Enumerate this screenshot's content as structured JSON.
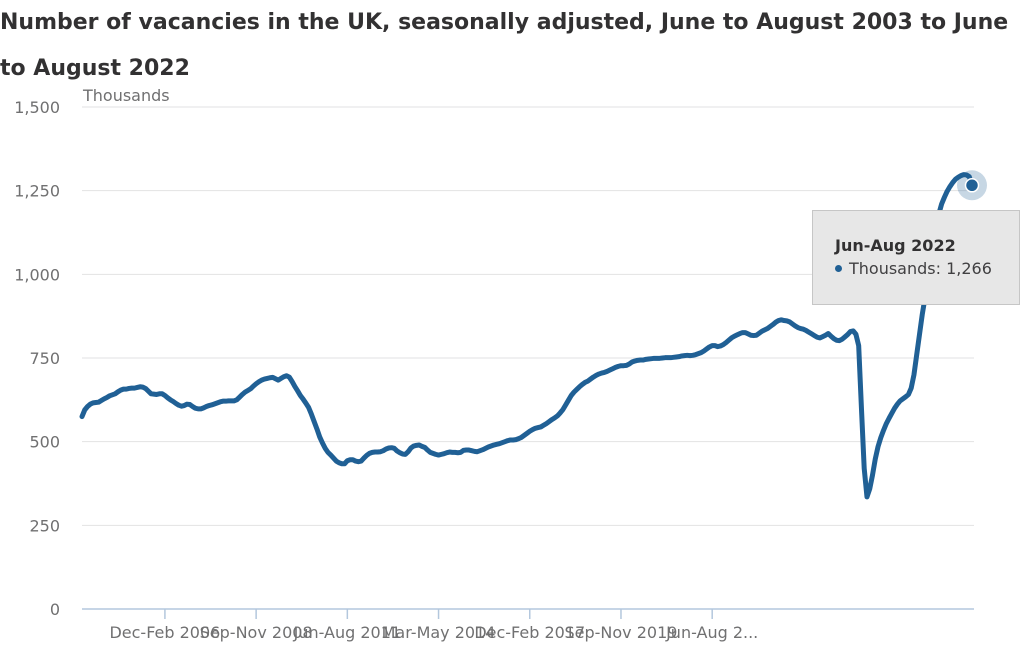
{
  "chart_data": {
    "type": "line",
    "title": "Number of vacancies in the UK, seasonally adjusted, June to August 2003 to June to August 2022",
    "ylabel": "Thousands",
    "xlabel": "",
    "ylim": [
      0,
      1500
    ],
    "yticks": [
      0,
      250,
      500,
      750,
      1000,
      1250,
      1500
    ],
    "ytick_labels": [
      "0",
      "250",
      "500",
      "750",
      "1,000",
      "1,250",
      "1,500"
    ],
    "xtick_labels": [
      "Dec-Feb 2006",
      "Sep-Nov 2008",
      "Jun-Aug 2011",
      "Mar-May 2014",
      "Dec-Feb 2017",
      "Sep-Nov 2019",
      "Jun-Aug 2..."
    ],
    "xtick_indices": [
      30,
      63,
      96,
      129,
      162,
      195,
      228
    ],
    "grid": "horizontal",
    "color": "#206095",
    "series": [
      {
        "name": "Thousands",
        "start": "Jun-Aug 2003",
        "end": "Jun-Aug 2022",
        "values": [
          575,
          595,
          605,
          612,
          616,
          617,
          618,
          623,
          628,
          632,
          637,
          640,
          643,
          649,
          654,
          657,
          657,
          659,
          660,
          660,
          662,
          664,
          663,
          659,
          651,
          643,
          642,
          641,
          643,
          643,
          638,
          631,
          625,
          620,
          614,
          609,
          606,
          608,
          612,
          611,
          605,
          600,
          598,
          598,
          601,
          605,
          608,
          610,
          613,
          616,
          619,
          621,
          621,
          622,
          622,
          622,
          625,
          633,
          641,
          648,
          653,
          658,
          666,
          673,
          679,
          684,
          687,
          689,
          691,
          692,
          688,
          684,
          689,
          694,
          697,
          693,
          680,
          665,
          652,
          638,
          627,
          615,
          602,
          582,
          560,
          538,
          514,
          496,
          480,
          468,
          460,
          451,
          442,
          437,
          434,
          434,
          443,
          446,
          446,
          442,
          440,
          442,
          451,
          459,
          465,
          468,
          469,
          469,
          470,
          473,
          478,
          481,
          482,
          480,
          472,
          467,
          463,
          462,
          470,
          481,
          487,
          489,
          490,
          486,
          483,
          475,
          468,
          465,
          462,
          460,
          462,
          464,
          467,
          469,
          468,
          468,
          467,
          468,
          474,
          475,
          475,
          473,
          471,
          470,
          473,
          476,
          480,
          484,
          487,
          490,
          492,
          494,
          497,
          500,
          503,
          505,
          505,
          506,
          509,
          513,
          519,
          525,
          531,
          536,
          540,
          542,
          544,
          549,
          554,
          560,
          566,
          571,
          577,
          586,
          596,
          610,
          624,
          638,
          648,
          656,
          664,
          671,
          677,
          681,
          687,
          693,
          698,
          702,
          705,
          707,
          710,
          714,
          718,
          722,
          725,
          727,
          727,
          728,
          732,
          738,
          741,
          743,
          744,
          744,
          746,
          747,
          748,
          749,
          749,
          749,
          750,
          751,
          751,
          751,
          752,
          753,
          754,
          756,
          757,
          758,
          757,
          758,
          760,
          763,
          766,
          771,
          777,
          783,
          787,
          787,
          784,
          786,
          790,
          796,
          803,
          810,
          815,
          819,
          823,
          826,
          826,
          822,
          818,
          817,
          818,
          824,
          830,
          834,
          838,
          844,
          850,
          857,
          862,
          864,
          862,
          861,
          858,
          852,
          846,
          841,
          838,
          836,
          832,
          827,
          822,
          817,
          812,
          810,
          814,
          818,
          823,
          815,
          808,
          803,
          802,
          806,
          813,
          820,
          829,
          831,
          821,
          787,
          600,
          420,
          335,
          359,
          400,
          448,
          485,
          512,
          534,
          554,
          570,
          585,
          600,
          612,
          622,
          628,
          634,
          641,
          660,
          700,
          760,
          820,
          880,
          930,
          980,
          1030,
          1080,
          1130,
          1180,
          1210,
          1230,
          1248,
          1262,
          1274,
          1284,
          1290,
          1295,
          1298,
          1297,
          1292,
          1266
        ]
      }
    ],
    "tooltip": {
      "title": "Jun-Aug 2022",
      "label": "Thousands: 1,266"
    }
  }
}
